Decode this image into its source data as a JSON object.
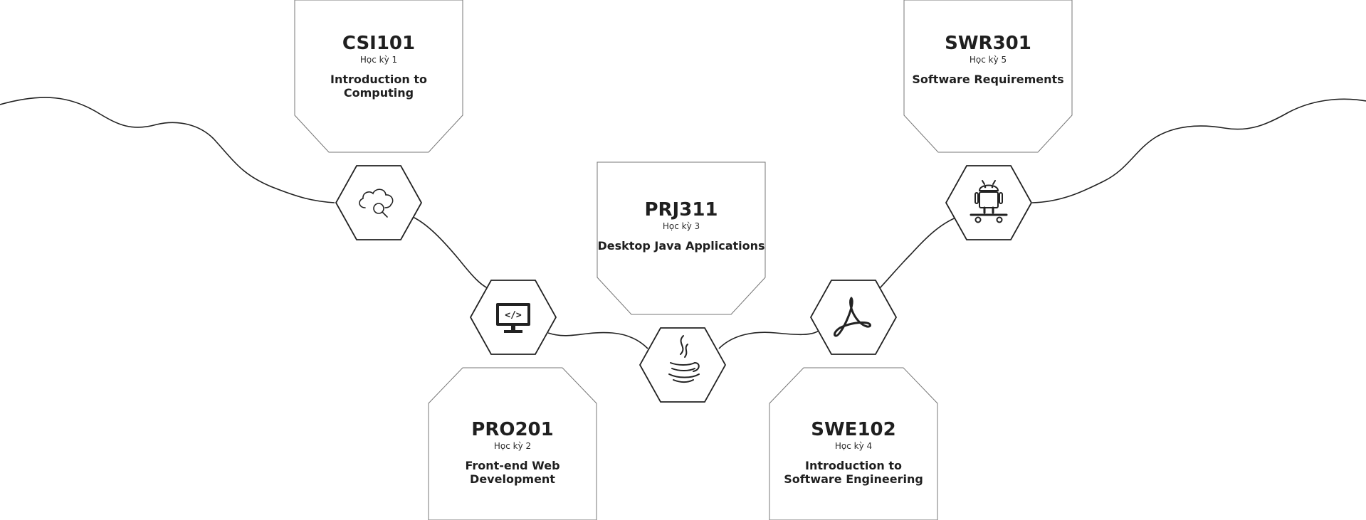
{
  "courses": [
    {
      "code": "CSI101",
      "semester": "Học kỳ 1",
      "name": "Introduction to Computing",
      "icon": "cloud-search-icon"
    },
    {
      "code": "PRO201",
      "semester": "Học kỳ 2",
      "name": "Front-end Web Development",
      "icon": "monitor-code-icon"
    },
    {
      "code": "PRJ311",
      "semester": "Học kỳ 3",
      "name": "Desktop Java Applications",
      "icon": "java-icon"
    },
    {
      "code": "SWE102",
      "semester": "Học kỳ 4",
      "name": "Introduction to\nSoftware Engineering",
      "icon": "pdf-acrobat-icon"
    },
    {
      "code": "SWR301",
      "semester": "Học kỳ 5",
      "name": "Software Requirements",
      "icon": "android-skateboard-icon"
    }
  ],
  "colors": {
    "stroke": "#222222",
    "card_border": "#777777",
    "text": "#1f1f1f",
    "background": "#ffffff"
  }
}
